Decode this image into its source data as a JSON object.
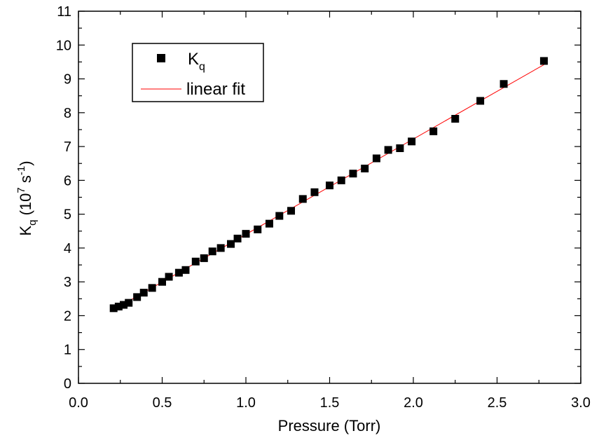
{
  "chart_data": {
    "type": "scatter",
    "xlabel": "Pressure (Torr)",
    "ylabel": {
      "base": "K",
      "sub": "q",
      "open": " (10",
      "exp": "7",
      "unit": " s",
      "unit_exp": "-1",
      "close": ")"
    },
    "xlim": [
      0.0,
      3.0
    ],
    "ylim": [
      0,
      11
    ],
    "xticks": [
      "0.0",
      "0.5",
      "1.0",
      "1.5",
      "2.0",
      "2.5",
      "3.0"
    ],
    "yticks": [
      "0",
      "1",
      "2",
      "3",
      "4",
      "5",
      "6",
      "7",
      "8",
      "9",
      "10",
      "11"
    ],
    "grid": false,
    "legend_position": "top-left",
    "series": [
      {
        "legend": {
          "base": "K",
          "sub": "q"
        },
        "kind": "scatter",
        "marker": "square",
        "color": "#000000",
        "x": [
          0.21,
          0.24,
          0.27,
          0.3,
          0.35,
          0.39,
          0.44,
          0.5,
          0.54,
          0.6,
          0.64,
          0.7,
          0.75,
          0.8,
          0.85,
          0.91,
          0.95,
          1.0,
          1.07,
          1.14,
          1.2,
          1.27,
          1.34,
          1.41,
          1.5,
          1.57,
          1.64,
          1.71,
          1.78,
          1.85,
          1.92,
          1.99,
          2.12,
          2.25,
          2.4,
          2.54,
          2.78
        ],
        "y": [
          2.22,
          2.27,
          2.32,
          2.38,
          2.55,
          2.68,
          2.82,
          3.0,
          3.15,
          3.27,
          3.35,
          3.6,
          3.7,
          3.9,
          4.0,
          4.12,
          4.28,
          4.42,
          4.55,
          4.72,
          4.95,
          5.1,
          5.45,
          5.65,
          5.85,
          6.0,
          6.2,
          6.35,
          6.65,
          6.9,
          6.95,
          7.15,
          7.45,
          7.82,
          8.35,
          8.85,
          9.53
        ]
      },
      {
        "legend": "linear fit",
        "kind": "line",
        "color": "#ff0000",
        "x": [
          0.2,
          2.78
        ],
        "y": [
          2.15,
          9.42
        ]
      }
    ]
  }
}
